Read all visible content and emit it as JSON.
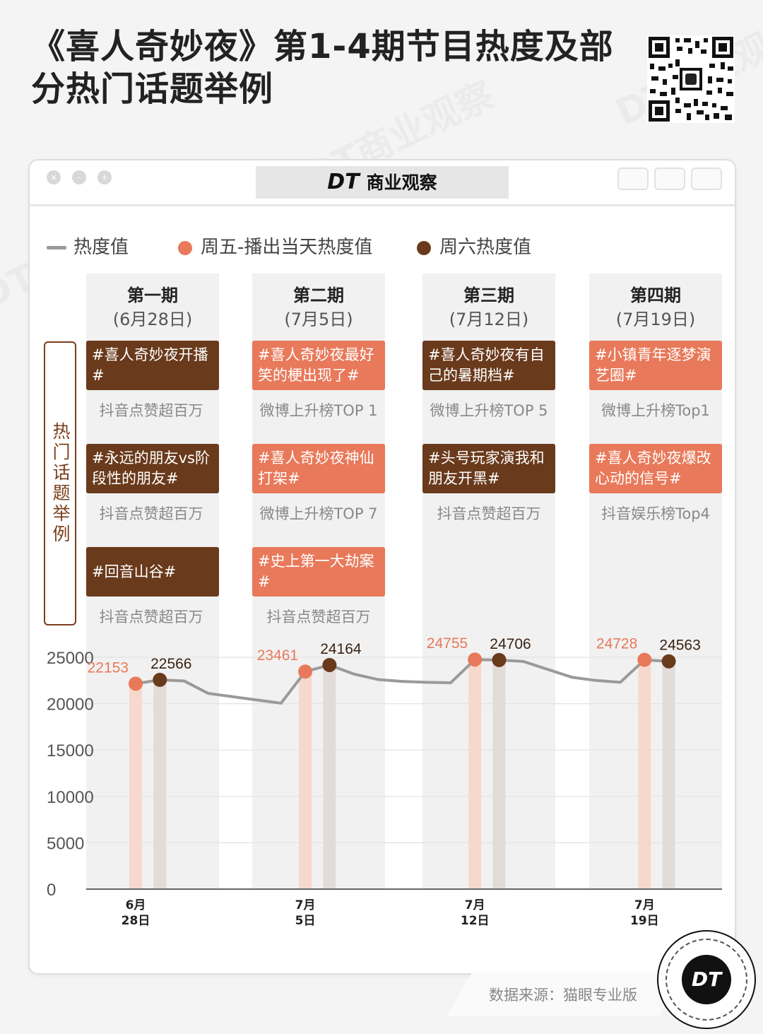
{
  "header": {
    "title": "《喜人奇妙夜》第1-4期节目热度及部分热门话题举例"
  },
  "brand": {
    "logo": "DT",
    "name": "商业观察",
    "badge": "DT",
    "watermark": "DT商业观察"
  },
  "legend": {
    "heat": "热度值",
    "friday": "周五-播出当天热度值",
    "saturday": "周六热度值"
  },
  "side_label": "热门话题举例",
  "episodes": [
    {
      "title": "第一期",
      "date": "(6月28日)",
      "topics": [
        {
          "text": "#喜人奇妙夜开播#",
          "note": "抖音点赞超百万",
          "tone": "dark"
        },
        {
          "text": "#永远的朋友vs阶段性的朋友#",
          "note": "抖音点赞超百万",
          "tone": "dark"
        },
        {
          "text": "#回音山谷#",
          "note": "抖音点赞超百万",
          "tone": "dark"
        }
      ]
    },
    {
      "title": "第二期",
      "date": "(7月5日)",
      "topics": [
        {
          "text": "#喜人奇妙夜最好笑的梗出现了#",
          "note": "微博上升榜TOP 1",
          "tone": "light"
        },
        {
          "text": "#喜人奇妙夜神仙打架#",
          "note": "微博上升榜TOP 7",
          "tone": "light"
        },
        {
          "text": "#史上第一大劫案#",
          "note": "抖音点赞超百万",
          "tone": "light"
        }
      ]
    },
    {
      "title": "第三期",
      "date": "(7月12日)",
      "topics": [
        {
          "text": "#喜人奇妙夜有自己的暑期档#",
          "note": "微博上升榜TOP 5",
          "tone": "dark"
        },
        {
          "text": "#头号玩家演我和朋友开黑#",
          "note": "抖音点赞超百万",
          "tone": "dark"
        }
      ]
    },
    {
      "title": "第四期",
      "date": "(7月19日)",
      "topics": [
        {
          "text": "#小镇青年逐梦演艺圈#",
          "note": "微博上升榜Top1",
          "tone": "light"
        },
        {
          "text": "#喜人奇妙夜爆改心动的信号#",
          "note": "抖音娱乐榜Top4",
          "tone": "light"
        }
      ]
    }
  ],
  "chart_data": {
    "type": "line",
    "title": "热度值",
    "ylim": [
      0,
      25000
    ],
    "yticks": [
      0,
      5000,
      10000,
      15000,
      20000,
      25000
    ],
    "grid": true,
    "x_day_range": [
      0,
      25
    ],
    "x_ticks": [
      {
        "day": 0,
        "label": "6月28日"
      },
      {
        "day": 7,
        "label": "7月5日"
      },
      {
        "day": 14,
        "label": "7月12日"
      },
      {
        "day": 21,
        "label": "7月19日"
      }
    ],
    "series": [
      {
        "name": "热度值",
        "color": "#9a9a9a",
        "points": [
          {
            "day": 0,
            "value": 22153
          },
          {
            "day": 1,
            "value": 22566
          },
          {
            "day": 2,
            "value": 22450
          },
          {
            "day": 3,
            "value": 21100
          },
          {
            "day": 4,
            "value": 20750
          },
          {
            "day": 5,
            "value": 20400
          },
          {
            "day": 6,
            "value": 20050
          },
          {
            "day": 7,
            "value": 23461
          },
          {
            "day": 8,
            "value": 24164
          },
          {
            "day": 9,
            "value": 23200
          },
          {
            "day": 10,
            "value": 22600
          },
          {
            "day": 11,
            "value": 22400
          },
          {
            "day": 12,
            "value": 22300
          },
          {
            "day": 13,
            "value": 22250
          },
          {
            "day": 14,
            "value": 24755
          },
          {
            "day": 15,
            "value": 24706
          },
          {
            "day": 16,
            "value": 24550
          },
          {
            "day": 17,
            "value": 23700
          },
          {
            "day": 18,
            "value": 22850
          },
          {
            "day": 19,
            "value": 22500
          },
          {
            "day": 20,
            "value": 22300
          },
          {
            "day": 21,
            "value": 24728
          },
          {
            "day": 22,
            "value": 24563
          }
        ]
      }
    ],
    "markers": [
      {
        "day": 0,
        "value": 22153,
        "kind": "friday"
      },
      {
        "day": 1,
        "value": 22566,
        "kind": "saturday"
      },
      {
        "day": 7,
        "value": 23461,
        "kind": "friday"
      },
      {
        "day": 8,
        "value": 24164,
        "kind": "saturday"
      },
      {
        "day": 14,
        "value": 24755,
        "kind": "friday"
      },
      {
        "day": 15,
        "value": 24706,
        "kind": "saturday"
      },
      {
        "day": 21,
        "value": 24728,
        "kind": "friday"
      },
      {
        "day": 22,
        "value": 24563,
        "kind": "saturday"
      }
    ],
    "colors": {
      "friday": "#e8795a",
      "saturday": "#6a3a1c",
      "friday_bar": "#f7d8cd",
      "saturday_bar": "#e2dcd8",
      "friday_label": "#e8795a",
      "saturday_label": "#3a2314"
    }
  },
  "footer": {
    "source": "数据来源：猫眼专业版"
  }
}
